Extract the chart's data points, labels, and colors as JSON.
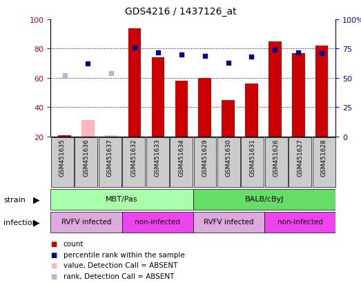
{
  "title": "GDS4216 / 1437126_at",
  "samples": [
    "GSM451635",
    "GSM451636",
    "GSM451637",
    "GSM451632",
    "GSM451633",
    "GSM451634",
    "GSM451629",
    "GSM451630",
    "GSM451631",
    "GSM451626",
    "GSM451627",
    "GSM451628"
  ],
  "count_values": [
    21,
    0,
    0,
    94,
    74,
    58,
    60,
    45,
    56,
    85,
    77,
    82
  ],
  "count_absent": [
    false,
    true,
    true,
    false,
    false,
    false,
    false,
    false,
    false,
    false,
    false,
    false
  ],
  "count_absent_values": [
    0,
    31,
    21,
    0,
    0,
    0,
    0,
    0,
    0,
    0,
    0,
    0
  ],
  "rank_values": [
    0,
    62,
    0,
    76,
    72,
    70,
    69,
    63,
    68,
    74,
    72,
    71
  ],
  "rank_absent": [
    true,
    false,
    true,
    false,
    false,
    false,
    false,
    false,
    false,
    false,
    false,
    false
  ],
  "rank_absent_values": [
    52,
    0,
    54,
    0,
    0,
    0,
    0,
    0,
    0,
    0,
    0,
    0
  ],
  "strain_groups": [
    {
      "label": "MBT/Pas",
      "start": 0,
      "end": 5,
      "color": "#AAFFAA"
    },
    {
      "label": "BALB/cByJ",
      "start": 6,
      "end": 11,
      "color": "#66DD66"
    }
  ],
  "infection_groups": [
    {
      "label": "RVFV infected",
      "start": 0,
      "end": 2,
      "color": "#DDAADD"
    },
    {
      "label": "non-infected",
      "start": 3,
      "end": 5,
      "color": "#EE44EE"
    },
    {
      "label": "RVFV infected",
      "start": 6,
      "end": 8,
      "color": "#DDAADD"
    },
    {
      "label": "non-infected",
      "start": 9,
      "end": 11,
      "color": "#EE44EE"
    }
  ],
  "ylim_left": [
    20,
    100
  ],
  "ylim_right": [
    0,
    100
  ],
  "bar_color": "#CC0000",
  "bar_absent_color": "#FFB6C1",
  "rank_color": "#00008B",
  "rank_absent_color": "#AABBDD",
  "bar_width": 0.55,
  "legend_items": [
    {
      "label": "count",
      "color": "#CC0000"
    },
    {
      "label": "percentile rank within the sample",
      "color": "#00008B"
    },
    {
      "label": "value, Detection Call = ABSENT",
      "color": "#FFB6C1"
    },
    {
      "label": "rank, Detection Call = ABSENT",
      "color": "#AABBDD"
    }
  ],
  "strain_label": "strain",
  "infection_label": "infection",
  "left_axis_color": "#CC0000",
  "right_axis_color": "#0000CC",
  "yticks_left": [
    20,
    40,
    60,
    80,
    100
  ],
  "yticks_right": [
    0,
    25,
    50,
    75,
    100
  ],
  "ytick_labels_right": [
    "0",
    "25",
    "50",
    "75",
    "100%"
  ]
}
